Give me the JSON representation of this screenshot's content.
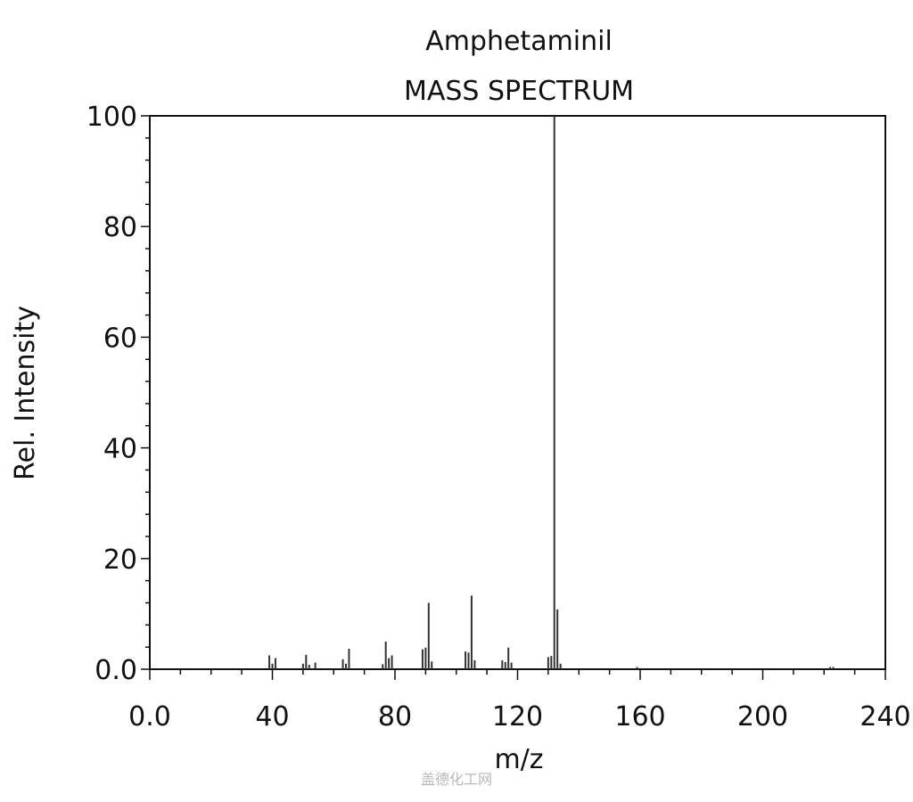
{
  "chart_data": {
    "type": "bar",
    "title": "Amphetaminil",
    "subtitle": "MASS SPECTRUM",
    "xlabel": "m/z",
    "ylabel": "Rel. Intensity",
    "xlim": [
      0,
      240
    ],
    "ylim": [
      0,
      100
    ],
    "x_ticks": [
      0,
      40,
      80,
      120,
      160,
      200,
      240
    ],
    "x_tick_labels": [
      "0.0",
      "40",
      "80",
      "120",
      "160",
      "200",
      "240"
    ],
    "y_ticks": [
      0,
      20,
      40,
      60,
      80,
      100
    ],
    "y_tick_labels": [
      "0.0",
      "20",
      "40",
      "60",
      "80",
      "100"
    ],
    "grid": false,
    "bar_color": "#333333",
    "peaks": [
      {
        "mz": 39,
        "intensity": 2.5
      },
      {
        "mz": 40,
        "intensity": 1.0
      },
      {
        "mz": 41,
        "intensity": 2.0
      },
      {
        "mz": 50,
        "intensity": 1.0
      },
      {
        "mz": 51,
        "intensity": 2.6
      },
      {
        "mz": 52,
        "intensity": 0.8
      },
      {
        "mz": 54,
        "intensity": 1.2
      },
      {
        "mz": 63,
        "intensity": 1.8
      },
      {
        "mz": 64,
        "intensity": 1.0
      },
      {
        "mz": 65,
        "intensity": 3.7
      },
      {
        "mz": 76,
        "intensity": 0.9
      },
      {
        "mz": 77,
        "intensity": 5.0
      },
      {
        "mz": 78,
        "intensity": 2.0
      },
      {
        "mz": 79,
        "intensity": 2.5
      },
      {
        "mz": 89,
        "intensity": 3.6
      },
      {
        "mz": 90,
        "intensity": 3.9
      },
      {
        "mz": 91,
        "intensity": 12.0
      },
      {
        "mz": 92,
        "intensity": 1.4
      },
      {
        "mz": 103,
        "intensity": 3.2
      },
      {
        "mz": 104,
        "intensity": 3.0
      },
      {
        "mz": 105,
        "intensity": 13.3
      },
      {
        "mz": 106,
        "intensity": 1.6
      },
      {
        "mz": 115,
        "intensity": 1.6
      },
      {
        "mz": 116,
        "intensity": 1.3
      },
      {
        "mz": 117,
        "intensity": 3.9
      },
      {
        "mz": 118,
        "intensity": 1.2
      },
      {
        "mz": 130,
        "intensity": 2.2
      },
      {
        "mz": 131,
        "intensity": 2.4
      },
      {
        "mz": 132,
        "intensity": 100
      },
      {
        "mz": 133,
        "intensity": 10.8
      },
      {
        "mz": 134,
        "intensity": 1.0
      },
      {
        "mz": 159,
        "intensity": 0.4
      },
      {
        "mz": 222,
        "intensity": 0.4
      },
      {
        "mz": 223,
        "intensity": 0.4
      }
    ]
  },
  "watermark": "盖德化工网"
}
